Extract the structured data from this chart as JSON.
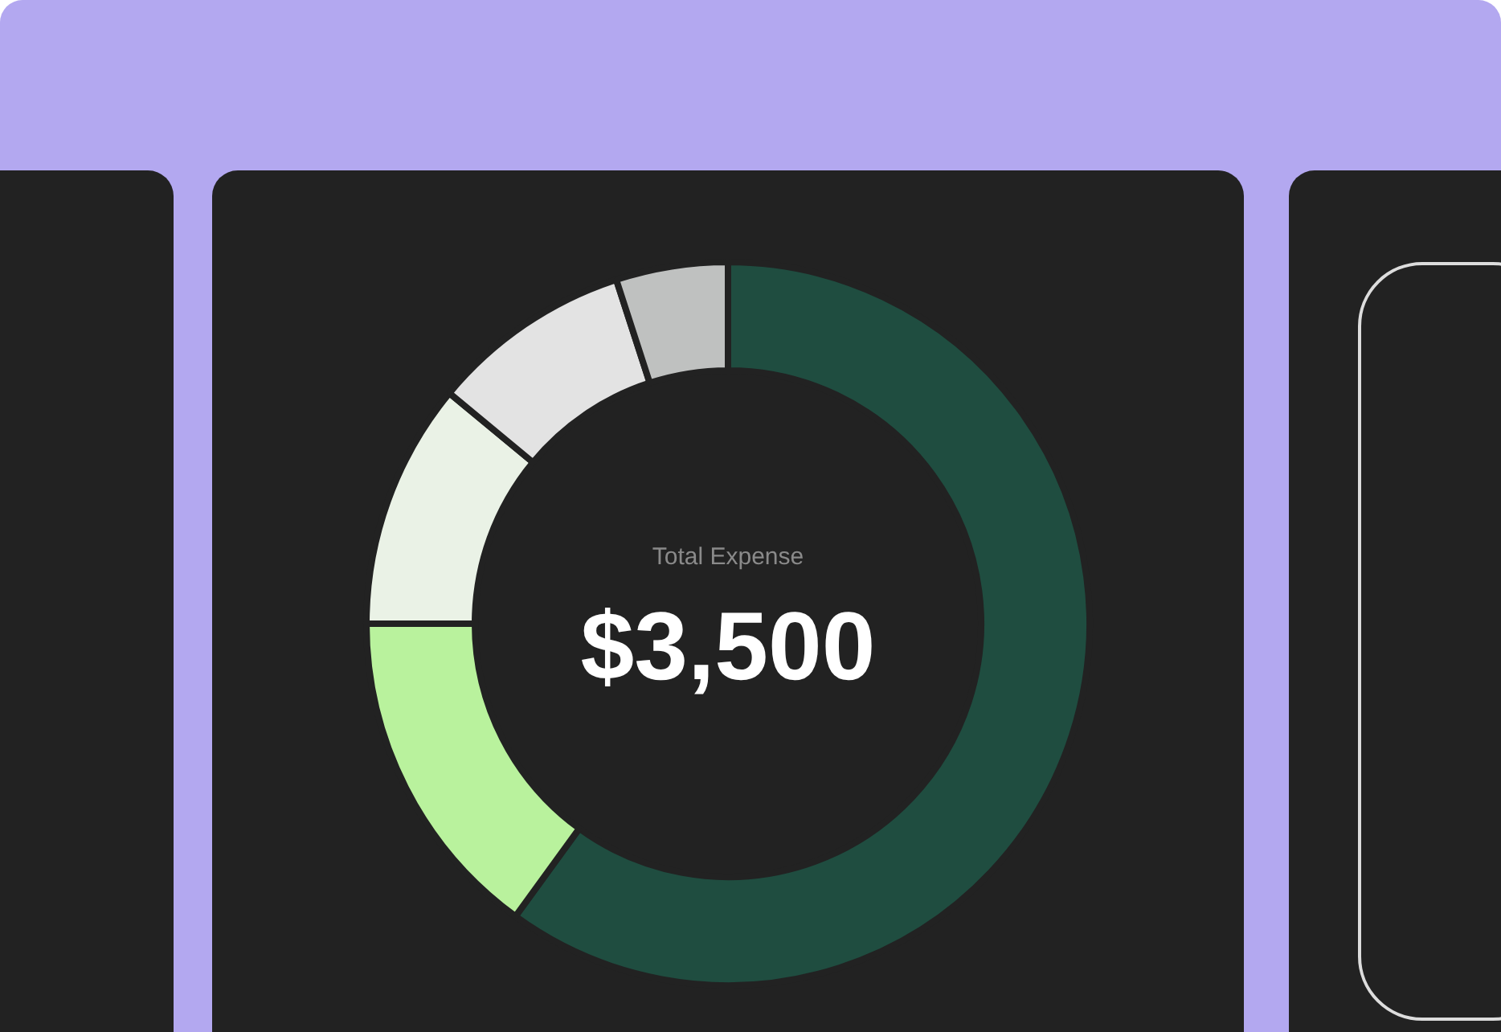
{
  "chart_data": {
    "type": "donut",
    "title": "Total Expense",
    "subtitle": "$3,500",
    "categories": [
      null,
      null,
      null,
      null,
      null
    ],
    "values": [
      60,
      15,
      11,
      9,
      5
    ],
    "colors": [
      "#1f4d40",
      "#b9f29d",
      "#eaf2e6",
      "#e3e3e3",
      "#bfc1c0"
    ],
    "legend": false
  }
}
